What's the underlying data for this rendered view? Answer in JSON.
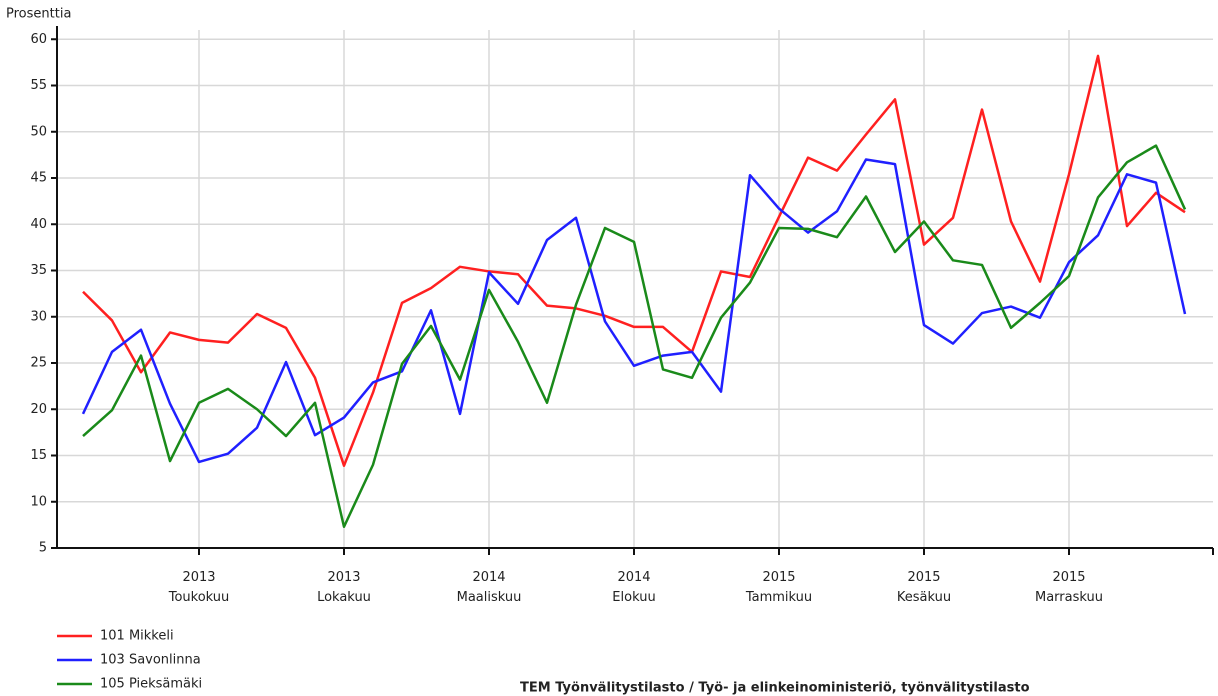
{
  "chart_data": {
    "type": "line",
    "ylabel": "Prosenttia",
    "source": "TEM Työnvälitystilasto / Työ- ja elinkeinoministeriö, työnvälitystilasto",
    "categories": [
      null,
      null,
      null,
      null,
      "2013 Toukokuu",
      null,
      null,
      null,
      null,
      "2013 Lokakuu",
      null,
      null,
      null,
      null,
      "2014 Maaliskuu",
      null,
      null,
      null,
      null,
      "2014 Elokuu",
      null,
      null,
      null,
      null,
      "2015 Tammikuu",
      null,
      null,
      null,
      null,
      "2015 Kesäkuu",
      null,
      null,
      null,
      null,
      "2015 Marraskuu",
      null,
      null,
      null,
      null
    ],
    "series": [
      {
        "name": "101 Mikkeli",
        "color": "#ff2020",
        "values": [
          32.7,
          29.6,
          24.0,
          28.3,
          27.5,
          27.2,
          30.3,
          28.8,
          23.4,
          13.9,
          21.8,
          31.5,
          33.1,
          35.4,
          34.9,
          34.6,
          31.2,
          30.9,
          30.1,
          28.9,
          28.9,
          26.2,
          34.9,
          34.3,
          40.8,
          47.2,
          45.8,
          49.7,
          53.5,
          37.8,
          40.7,
          52.4,
          40.3,
          33.8,
          45.4,
          58.2,
          39.8,
          43.4,
          41.3
        ]
      },
      {
        "name": "103 Savonlinna",
        "color": "#2020ff",
        "values": [
          19.5,
          26.2,
          28.6,
          20.6,
          14.3,
          15.2,
          18.0,
          25.1,
          17.2,
          19.1,
          22.9,
          24.1,
          30.7,
          19.5,
          34.8,
          31.4,
          38.3,
          40.7,
          29.5,
          24.7,
          25.8,
          26.2,
          21.9,
          45.3,
          41.7,
          39.1,
          41.4,
          47.0,
          46.5,
          29.1,
          27.1,
          30.4,
          31.1,
          29.9,
          35.9,
          38.8,
          45.4,
          44.5,
          30.3
        ]
      },
      {
        "name": "105 Pieksämäki",
        "color": "#1a8a1a",
        "values": [
          17.1,
          19.9,
          25.8,
          14.4,
          20.7,
          22.2,
          20.0,
          17.1,
          20.7,
          7.3,
          14.0,
          24.9,
          29.0,
          23.2,
          32.9,
          27.3,
          20.7,
          31.3,
          39.6,
          38.1,
          24.3,
          23.4,
          29.9,
          33.7,
          39.6,
          39.5,
          38.6,
          43.0,
          37.0,
          40.3,
          36.1,
          35.6,
          28.8,
          31.5,
          34.4,
          42.9,
          46.7,
          48.5,
          41.6
        ]
      }
    ],
    "ylim": [
      5,
      61
    ],
    "yticks": [
      5,
      10,
      15,
      20,
      25,
      30,
      35,
      40,
      45,
      50,
      55,
      60
    ],
    "grid": true,
    "legend": "bottom-left"
  }
}
